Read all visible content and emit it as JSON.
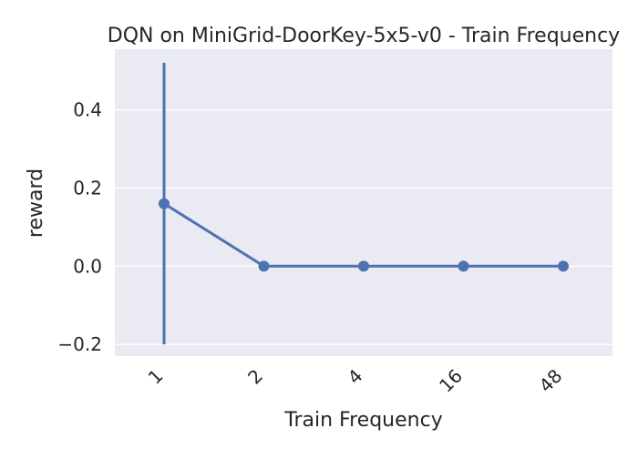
{
  "chart_data": {
    "type": "line",
    "title": "DQN on MiniGrid-DoorKey-5x5-v0 - Train Frequency",
    "xlabel": "Train Frequency",
    "ylabel": "reward",
    "categories": [
      "1",
      "2",
      "4",
      "16",
      "48"
    ],
    "series": [
      {
        "values": [
          0.16,
          0.0,
          0.0,
          0.0,
          0.0
        ],
        "error_low": [
          -0.2,
          0.0,
          0.0,
          0.0,
          0.0
        ],
        "error_high": [
          0.52,
          0.0,
          0.0,
          0.0,
          0.0
        ]
      }
    ],
    "yticks": [
      -0.2,
      0.0,
      0.2,
      0.4
    ],
    "ytick_labels": [
      "−0.2",
      "0.0",
      "0.2",
      "0.4"
    ],
    "ylim": [
      -0.23,
      0.555
    ],
    "grid": true,
    "legend": "none",
    "colors": {
      "background": "#eaeaf2",
      "grid": "#ffffff",
      "line": "#4c72b0",
      "text": "#262626"
    }
  }
}
